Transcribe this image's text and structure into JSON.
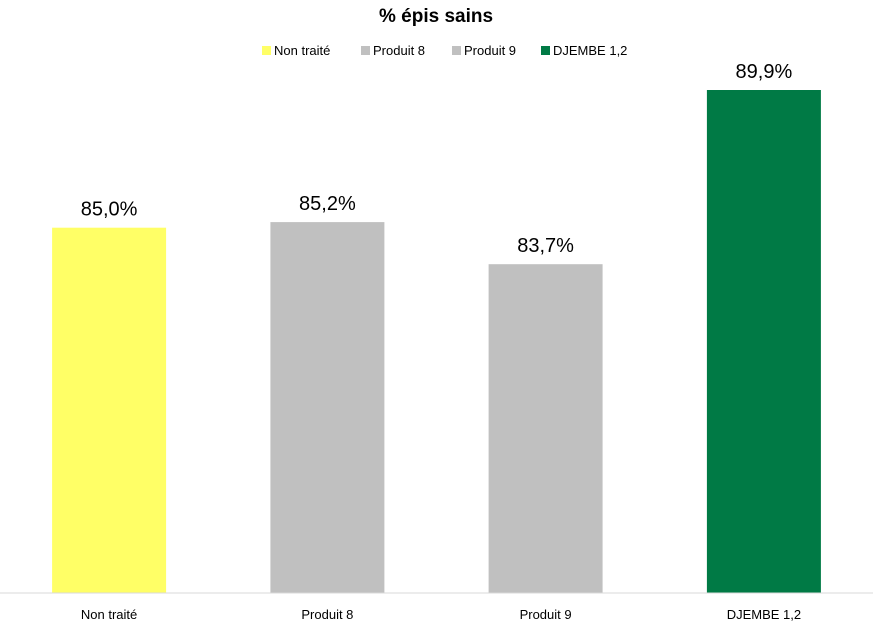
{
  "chart_data": {
    "type": "bar",
    "title": "% épis sains",
    "categories": [
      "Non traité",
      "Produit 8",
      "Produit 9",
      "DJEMBE 1,2"
    ],
    "values": [
      85.0,
      85.2,
      83.7,
      89.9
    ],
    "value_labels": [
      "85,0%",
      "85,2%",
      "83,7%",
      "89,9%"
    ],
    "legend": [
      {
        "label": "Non traité",
        "color": "#FFFF66"
      },
      {
        "label": "Produit 8",
        "color": "#C0C0C0"
      },
      {
        "label": "Produit 9",
        "color": "#C0C0C0"
      },
      {
        "label": "DJEMBE 1,2",
        "color": "#007A45"
      }
    ],
    "colors": [
      "#FFFF66",
      "#C0C0C0",
      "#C0C0C0",
      "#007A45"
    ],
    "ylim": [
      72,
      92
    ],
    "grid": false,
    "legend_position": "top",
    "xlabel": "",
    "ylabel": ""
  }
}
